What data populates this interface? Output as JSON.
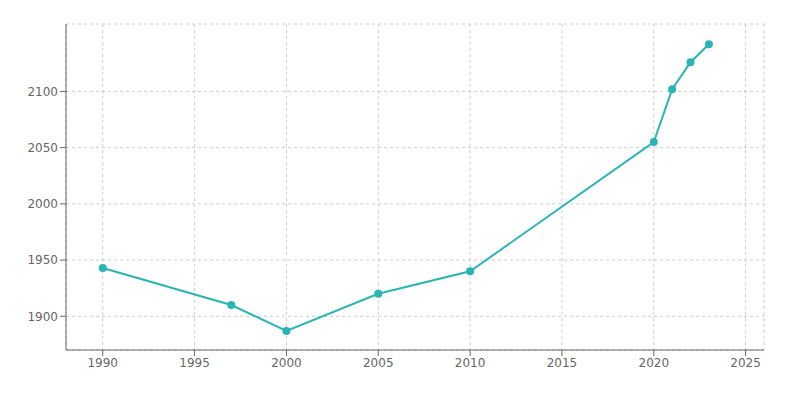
{
  "chart_data": {
    "type": "line",
    "x": [
      1990,
      1997,
      2000,
      2005,
      2010,
      2020,
      2021,
      2022,
      2023
    ],
    "values": [
      1943,
      1910,
      1887,
      1920,
      1940,
      2055,
      2102,
      2126,
      2142
    ],
    "color": "#2ab5b5",
    "marker": "circle",
    "xlim": [
      1988,
      2026
    ],
    "ylim": [
      1870,
      2160
    ],
    "xticks": [
      1990,
      1995,
      2000,
      2005,
      2010,
      2015,
      2020,
      2025
    ],
    "yticks": [
      1900,
      1950,
      2000,
      2050,
      2100
    ],
    "grid": true
  }
}
